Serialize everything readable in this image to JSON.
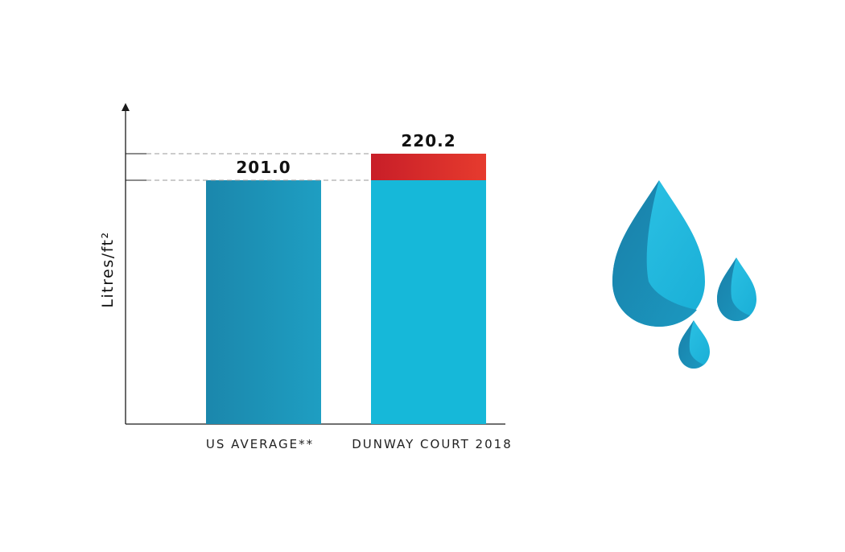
{
  "chart_data": {
    "type": "bar",
    "categories": [
      "US AVERAGE**",
      "DUNWAY COURT 2018"
    ],
    "values": [
      201.0,
      220.2
    ],
    "value_labels": [
      "201.0",
      "220.2"
    ],
    "title": "",
    "xlabel": "",
    "ylabel": "Litres/ft²",
    "grid": false,
    "legend": "none",
    "highlight": {
      "category": "DUNWAY COURT 2018",
      "from": 201.0,
      "to": 220.2
    },
    "colors": {
      "us_average_bar": [
        "#1b87ac",
        "#1e9ec2"
      ],
      "dunway_bar": "#16b8d9",
      "excess": [
        "#c81e28",
        "#e63b2e"
      ],
      "axis": "#1a1a1a",
      "guide": "#9a9a9a"
    }
  },
  "decoration": {
    "icon": "water-drops-icon"
  }
}
